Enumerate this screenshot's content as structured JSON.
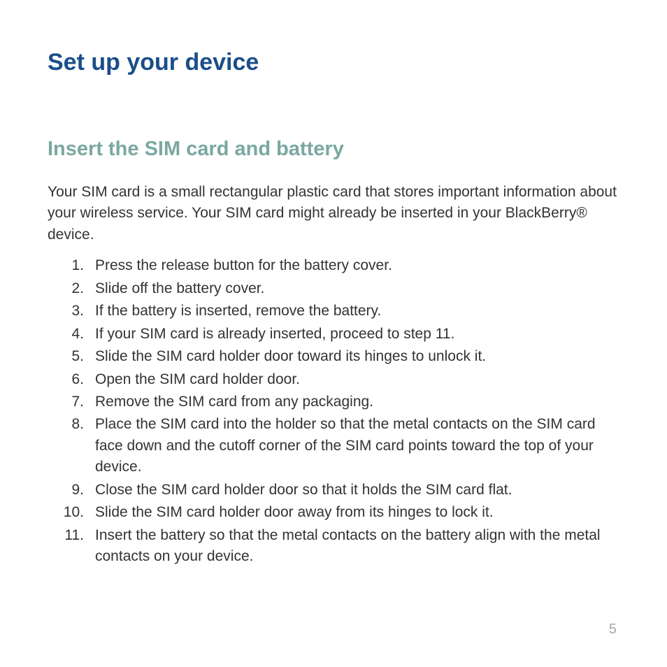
{
  "page": {
    "title": "Set up your device",
    "pageNumber": "5"
  },
  "section": {
    "heading": "Insert the SIM card and battery",
    "intro": "Your SIM card is a small rectangular plastic card that stores important information about your wireless service. Your SIM card might already be inserted in your BlackBerry® device.",
    "steps": [
      "Press the release button for the battery cover.",
      "Slide off the battery cover.",
      "If the battery is inserted, remove the battery.",
      "If your SIM card is already inserted, proceed to step 11.",
      "Slide the SIM card holder door toward its hinges to unlock it.",
      "Open the SIM card holder door.",
      "Remove the SIM card from any packaging.",
      "Place the SIM card into the holder so that the metal contacts on the SIM card face down and the cutoff corner of the SIM card points toward the top of your device.",
      "Close the SIM card holder door so that it holds the SIM card flat.",
      "Slide the SIM card holder door away from its hinges to lock it.",
      "Insert the battery so that the metal contacts on the battery align with the metal contacts on your device."
    ]
  },
  "colors": {
    "titleColor": "#1a4e8a",
    "sectionHeadingColor": "#7aa8a0",
    "bodyText": "#333333",
    "pageNumberColor": "#a8a8a8",
    "background": "#ffffff"
  },
  "typography": {
    "titleFontSize": 34,
    "sectionFontSize": 29,
    "bodyFontSize": 21,
    "titleWeight": "bold",
    "sectionWeight": "bold"
  }
}
